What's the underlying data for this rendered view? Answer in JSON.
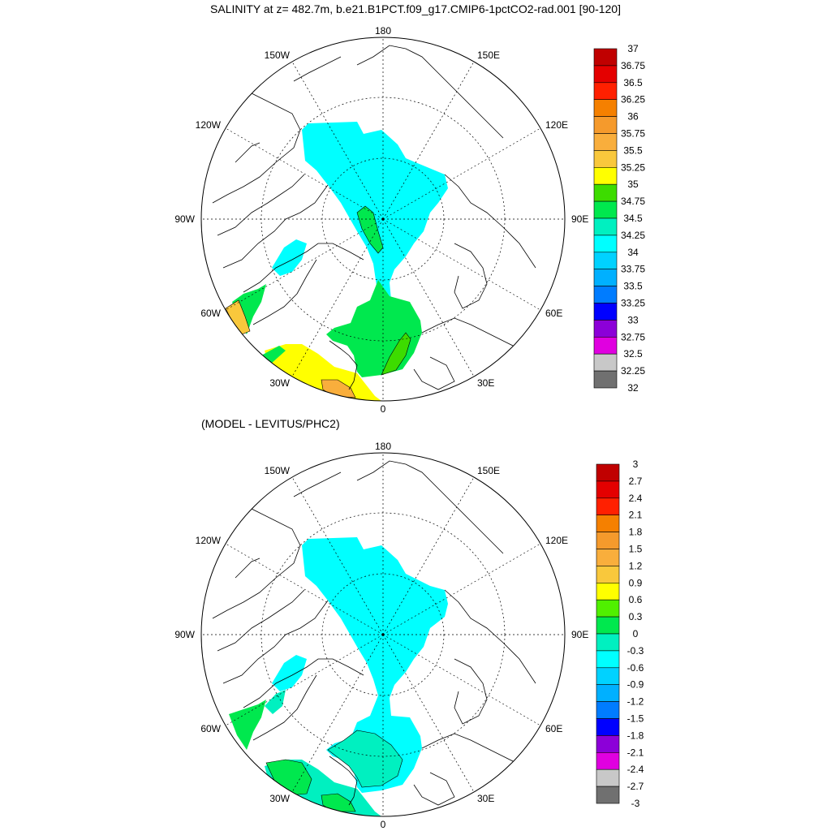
{
  "title": "SALINITY at z= 482.7m, b.e21.B1PCT.f09_g17.CMIP6-1pctCO2-rad.001 [90-120]",
  "subtitle": "(MODEL - LEVITUS/PHC2)",
  "lon_labels": {
    "top": "180",
    "bottom": "0",
    "left": "90W",
    "right": "90E",
    "upper_left": "150W",
    "upper_right": "150E",
    "mid_upper_left": "120W",
    "mid_upper_right": "120E",
    "mid_lower_left": "60W",
    "mid_lower_right": "60E",
    "lower_left": "30W",
    "lower_right": "30E"
  },
  "colorbar_top": {
    "labels": [
      "37",
      "36.75",
      "36.5",
      "36.25",
      "36",
      "35.75",
      "35.5",
      "35.25",
      "35",
      "34.75",
      "34.5",
      "34.25",
      "34",
      "33.75",
      "33.5",
      "33.25",
      "33",
      "32.75",
      "32.5",
      "32.25",
      "32"
    ],
    "colors": [
      "#c00000",
      "#e40000",
      "#ff2000",
      "#f58000",
      "#f59a2c",
      "#f9ae3c",
      "#f9c83c",
      "#ffff00",
      "#3ddc00",
      "#00e84e",
      "#00f0c0",
      "#00ffff",
      "#00d2ff",
      "#00b0ff",
      "#007cff",
      "#0000ff",
      "#8c00d8",
      "#e000e0",
      "#c8c8c8",
      "#707070"
    ]
  },
  "colorbar_bottom": {
    "labels": [
      "3",
      "2.7",
      "2.4",
      "2.1",
      "1.8",
      "1.5",
      "1.2",
      "0.9",
      "0.6",
      "0.3",
      "0",
      "-0.3",
      "-0.6",
      "-0.9",
      "-1.2",
      "-1.5",
      "-1.8",
      "-2.1",
      "-2.4",
      "-2.7",
      "-3"
    ],
    "colors": [
      "#c00000",
      "#e40000",
      "#ff2000",
      "#f58000",
      "#f59a2c",
      "#f9ae3c",
      "#f9c83c",
      "#ffff00",
      "#50f000",
      "#00e84e",
      "#00f0c0",
      "#00ffff",
      "#00d2ff",
      "#00b0ff",
      "#007cff",
      "#0000ff",
      "#8c00d8",
      "#e000e0",
      "#c8c8c8",
      "#707070"
    ]
  },
  "colors": {
    "map_top_cyan": "#00ffff",
    "map_top_green": "#00e84e",
    "map_top_lightgreen": "#3ddc00",
    "map_top_yellow": "#ffff00",
    "map_top_gold": "#f9c83c",
    "map_top_orange": "#f9ae3c",
    "map_bottom_cyan": "#00ffff",
    "map_bottom_teal": "#00f0c0",
    "map_bottom_green": "#00e84e"
  }
}
